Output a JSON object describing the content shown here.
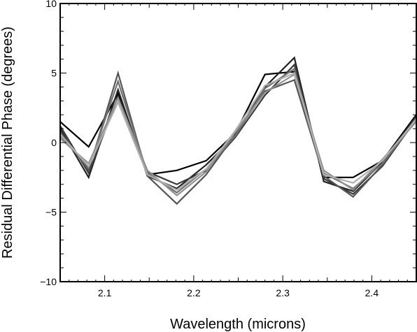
{
  "chart_data": {
    "type": "line",
    "title": "",
    "xlabel": "Wavelength (microns)",
    "ylabel": "Residual Differential Phase (degrees)",
    "xlim": [
      2.05,
      2.45
    ],
    "ylim": [
      -10,
      10
    ],
    "xticks": [
      2.1,
      2.2,
      2.3,
      2.4
    ],
    "xtick_labels": [
      "2.1",
      "2.2",
      "2.3",
      "2.4"
    ],
    "yticks": [
      -10,
      -5,
      0,
      5,
      10
    ],
    "ytick_labels": [
      "−10",
      "−5",
      "0",
      "5",
      "10"
    ],
    "grid": false,
    "legend": "none",
    "x": [
      2.05,
      2.082,
      2.115,
      2.148,
      2.181,
      2.214,
      2.247,
      2.28,
      2.313,
      2.346,
      2.379,
      2.412,
      2.45
    ],
    "series": [
      {
        "color": "#000000",
        "values": [
          1.5,
          -0.3,
          3.5,
          -2.3,
          -2.0,
          -1.3,
          0.7,
          4.9,
          5.1,
          -2.5,
          -2.5,
          -1.3,
          2.0
        ]
      },
      {
        "color": "#222222",
        "values": [
          1.0,
          -2.5,
          3.8,
          -2.4,
          -3.3,
          -1.6,
          0.5,
          4.0,
          6.1,
          -2.8,
          -3.5,
          -1.4,
          1.9
        ]
      },
      {
        "color": "#3a3a3a",
        "values": [
          1.2,
          -2.2,
          3.3,
          -2.1,
          -3.0,
          -2.0,
          0.4,
          3.4,
          5.6,
          -2.6,
          -3.7,
          -1.7,
          1.7
        ]
      },
      {
        "color": "#555555",
        "values": [
          0.8,
          -2.0,
          5.0,
          -2.4,
          -4.4,
          -2.3,
          0.6,
          3.7,
          4.5,
          -2.4,
          -3.9,
          -1.6,
          1.8
        ]
      },
      {
        "color": "#707070",
        "values": [
          0.5,
          -1.8,
          4.4,
          -2.2,
          -3.6,
          -1.9,
          0.5,
          3.9,
          5.3,
          -2.2,
          -3.3,
          -1.5,
          1.6
        ]
      },
      {
        "color": "#909090",
        "values": [
          0.3,
          -1.5,
          3.2,
          -2.0,
          -3.8,
          -2.1,
          0.8,
          3.6,
          4.9,
          -2.0,
          -3.4,
          -1.2,
          1.5
        ]
      },
      {
        "color": "#b0b0b0",
        "values": [
          0.6,
          -1.7,
          2.9,
          -2.3,
          -3.4,
          -1.9,
          0.9,
          4.1,
          5.0,
          -2.3,
          -2.9,
          -1.3,
          1.7
        ]
      }
    ]
  }
}
